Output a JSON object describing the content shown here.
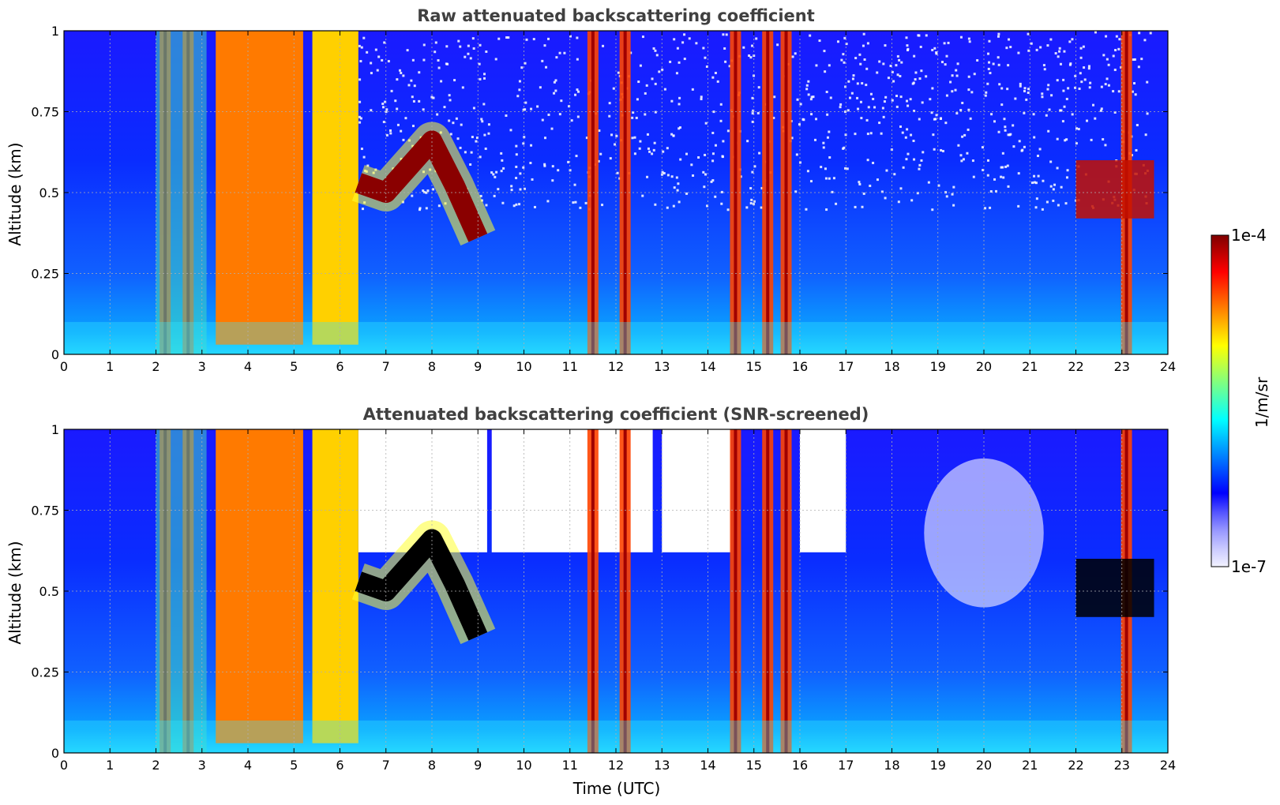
{
  "chart_data": [
    {
      "type": "heatmap",
      "title": "Raw attenuated backscattering coefficient",
      "xlabel": "",
      "ylabel": "Altitude (km)",
      "xlim": [
        0,
        24
      ],
      "ylim": [
        0,
        1
      ],
      "x_ticks": [
        "0",
        "1",
        "2",
        "3",
        "4",
        "5",
        "6",
        "7",
        "8",
        "9",
        "10",
        "11",
        "12",
        "13",
        "14",
        "15",
        "16",
        "17",
        "18",
        "19",
        "20",
        "21",
        "22",
        "23",
        "24"
      ],
      "y_ticks": [
        "0",
        "0.25",
        "0.5",
        "0.75",
        "1"
      ],
      "grid": true,
      "color_scale": "jet (log)",
      "features": {
        "surface_layer_top_km": 0.1,
        "thick_low_cloud_hours": [
          [
            3.3,
            5.2
          ],
          [
            5.4,
            6.4
          ]
        ],
        "cloud_top_layer": [
          {
            "time": 6.4,
            "alt": 0.53
          },
          {
            "time": 7.0,
            "alt": 0.5
          },
          {
            "time": 7.5,
            "alt": 0.58
          },
          {
            "time": 8.0,
            "alt": 0.66
          },
          {
            "time": 8.5,
            "alt": 0.52
          },
          {
            "time": 9.0,
            "alt": 0.36
          }
        ],
        "precipitation_columns_hours": [
          2.2,
          2.7,
          11.5,
          12.2,
          14.6,
          15.3,
          15.7,
          23.1
        ],
        "late_cloud_hours": [
          22.0,
          23.7
        ],
        "late_cloud_alt_km": 0.5
      }
    },
    {
      "type": "heatmap",
      "title": "Attenuated backscattering coefficient (SNR-screened)",
      "xlabel": "Time (UTC)",
      "ylabel": "Altitude (km)",
      "xlim": [
        0,
        24
      ],
      "ylim": [
        0,
        1
      ],
      "x_ticks": [
        "0",
        "1",
        "2",
        "3",
        "4",
        "5",
        "6",
        "7",
        "8",
        "9",
        "10",
        "11",
        "12",
        "13",
        "14",
        "15",
        "16",
        "17",
        "18",
        "19",
        "20",
        "21",
        "22",
        "23",
        "24"
      ],
      "y_ticks": [
        "0",
        "0.25",
        "0.5",
        "0.75",
        "1"
      ],
      "grid": true,
      "color_scale": "jet (log)",
      "screened_regions_hours": [
        [
          6.4,
          9.2
        ],
        [
          9.3,
          12.8
        ],
        [
          13.0,
          14.5
        ],
        [
          16.0,
          17.0
        ]
      ]
    }
  ],
  "colorbar": {
    "label": "1/m/sr",
    "max_label": "1e-4",
    "min_label": "1e-7",
    "colors": [
      "#f2f2ff",
      "#c8c8ff",
      "#9696ff",
      "#5050ff",
      "#0000ff",
      "#0040ff",
      "#0080ff",
      "#00c0ff",
      "#00ffff",
      "#40ffc0",
      "#80ff80",
      "#c0ff40",
      "#ffff00",
      "#ffc000",
      "#ff8000",
      "#ff4000",
      "#ff0000",
      "#c00000",
      "#800000"
    ]
  }
}
